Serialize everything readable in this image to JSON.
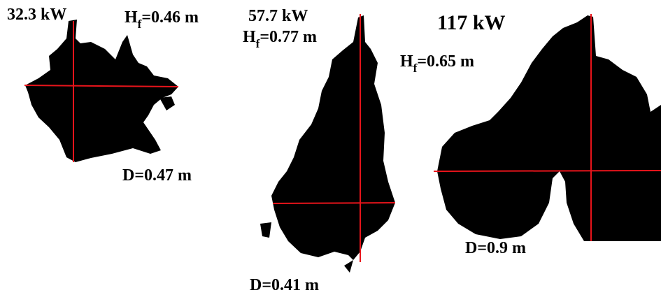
{
  "panels": [
    {
      "power": "32.3 kW",
      "height_symbol": "H",
      "height_subscript": "f",
      "height_value": "=0.46 m",
      "diameter": "D=0.47 m"
    },
    {
      "power": "57.7 kW",
      "height_symbol": "H",
      "height_subscript": "f",
      "height_value": "=0.77 m",
      "diameter": "D=0.41 m"
    },
    {
      "power": "117 kW",
      "height_symbol": "H",
      "height_subscript": "f",
      "height_value": "=0.65 m",
      "diameter": "D=0.9 m"
    }
  ]
}
